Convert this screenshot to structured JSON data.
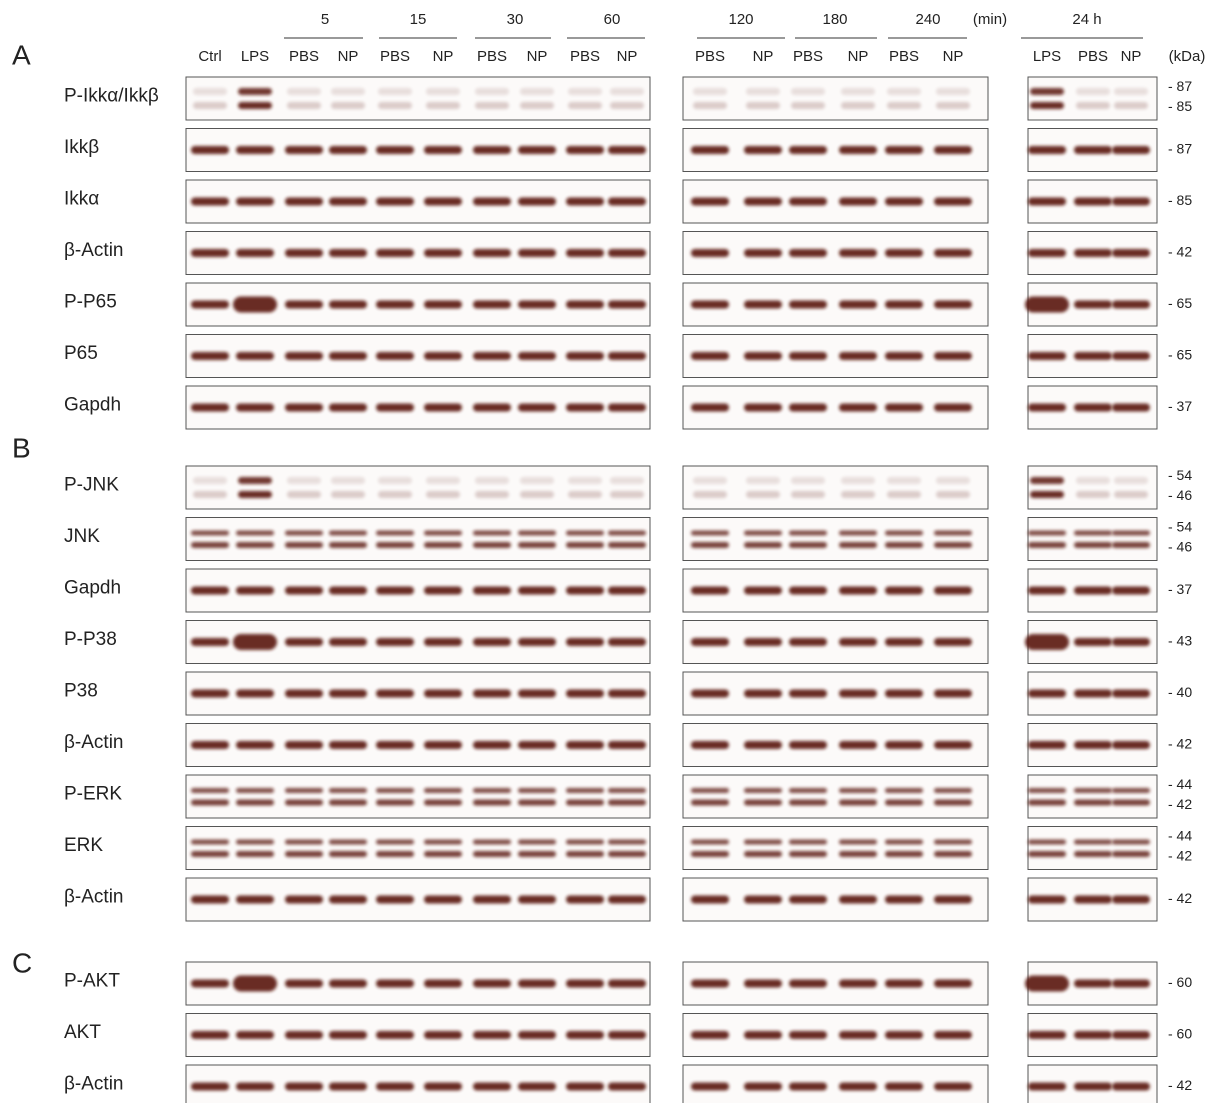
{
  "header": {
    "time_points": [
      "5",
      "15",
      "30",
      "60",
      "120",
      "180",
      "240"
    ],
    "time_unit": "(min)",
    "day_point": "24 h",
    "kda_unit": "(kDa)",
    "lanes_group1": [
      "Ctrl",
      "LPS",
      "PBS",
      "NP",
      "PBS",
      "NP",
      "PBS",
      "NP",
      "PBS",
      "NP"
    ],
    "lanes_group2": [
      "PBS",
      "NP",
      "PBS",
      "NP",
      "PBS",
      "NP"
    ],
    "lanes_group3": [
      "LPS",
      "PBS",
      "NP"
    ]
  },
  "panels": [
    {
      "letter": "A",
      "rows": [
        {
          "label": "P-Ikkα/Ikkβ",
          "kda": [
            "- 87",
            "- 85"
          ]
        },
        {
          "label": "Ikkβ",
          "kda": [
            "- 87"
          ]
        },
        {
          "label": "Ikkα",
          "kda": [
            "- 85"
          ]
        },
        {
          "label": "β-Actin",
          "kda": [
            "- 42"
          ]
        },
        {
          "label": "P-P65",
          "kda": [
            "- 65"
          ]
        },
        {
          "label": "P65",
          "kda": [
            "- 65"
          ]
        },
        {
          "label": "Gapdh",
          "kda": [
            "- 37"
          ]
        }
      ]
    },
    {
      "letter": "B",
      "rows": [
        {
          "label": "P-JNK",
          "kda": [
            "- 54",
            "- 46"
          ]
        },
        {
          "label": "JNK",
          "kda": [
            "- 54",
            "- 46"
          ]
        },
        {
          "label": "Gapdh",
          "kda": [
            "- 37"
          ]
        },
        {
          "label": "P-P38",
          "kda": [
            "- 43"
          ]
        },
        {
          "label": "P38",
          "kda": [
            "- 40"
          ]
        },
        {
          "label": "β-Actin",
          "kda": [
            "- 42"
          ]
        },
        {
          "label": "P-ERK",
          "kda": [
            "- 44",
            "- 42"
          ]
        },
        {
          "label": "ERK",
          "kda": [
            "- 44",
            "- 42"
          ]
        },
        {
          "label": "β-Actin",
          "kda": [
            "- 42"
          ]
        }
      ]
    },
    {
      "letter": "C",
      "rows": [
        {
          "label": "P-AKT",
          "kda": [
            "- 60"
          ]
        },
        {
          "label": "AKT",
          "kda": [
            "- 60"
          ]
        },
        {
          "label": "β-Actin",
          "kda": [
            "- 42"
          ]
        }
      ]
    }
  ]
}
